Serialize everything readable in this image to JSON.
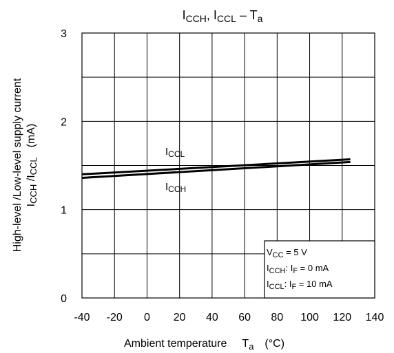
{
  "chart_data": {
    "type": "line",
    "title": {
      "p1": "I",
      "s1": "CCH",
      "p2": ", I",
      "s2": "CCL",
      "p3": " – T",
      "s3": "a"
    },
    "xlabel": {
      "p1": "Ambient temperature",
      "p2": "T",
      "s2": "a",
      "p3": "(°C)"
    },
    "ylabel": {
      "line1": "High-level /Low-level supply current",
      "p1": "I",
      "s1": "CCH",
      "p2": " /I",
      "s2": "CCL",
      "p3": "(mA)"
    },
    "xlim": [
      -40,
      140
    ],
    "ylim": [
      0,
      3
    ],
    "x_ticks": [
      "-40",
      "-20",
      "0",
      "20",
      "40",
      "60",
      "80",
      "100",
      "120",
      "140"
    ],
    "y_ticks": [
      "0",
      "1",
      "2",
      "3"
    ],
    "grid": true,
    "series": [
      {
        "name": "ICCL",
        "x": [
          -40,
          125
        ],
        "y": [
          1.4,
          1.57
        ]
      },
      {
        "name": "ICCH",
        "x": [
          -40,
          125
        ],
        "y": [
          1.36,
          1.54
        ]
      }
    ],
    "annotations": {
      "iccl": {
        "p1": "I",
        "s1": "CCL"
      },
      "icch": {
        "p1": "I",
        "s1": "CCH"
      }
    },
    "legend": {
      "placement": "bottom-right",
      "l1": {
        "p1": "V",
        "s1": "CC",
        "p2": " = 5 V"
      },
      "l2": {
        "p1": "I",
        "s1": "CCH",
        "p2": ": I",
        "s2": "F",
        "p3": " = 0 mA"
      },
      "l3": {
        "p1": "I",
        "s1": "CCL",
        "p2": ": I",
        "s2": "F",
        "p3": " = 10 mA"
      }
    },
    "colors": {
      "line": "#000000",
      "grid": "#000000"
    }
  }
}
